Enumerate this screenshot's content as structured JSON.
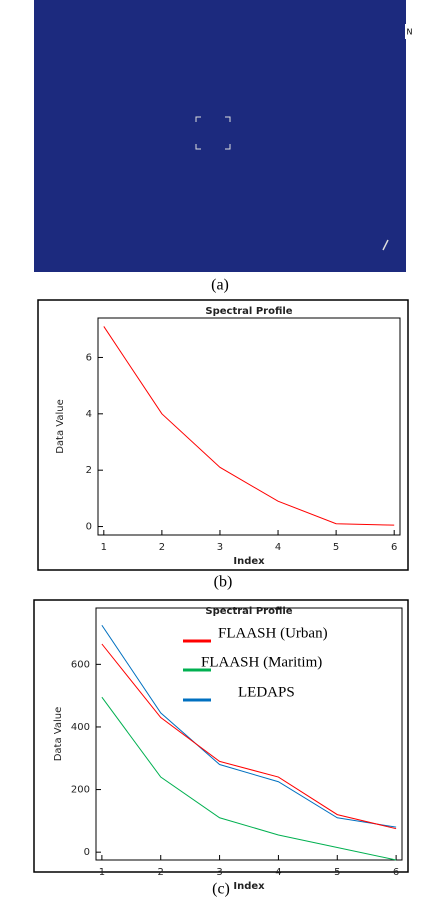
{
  "image": {
    "caption": "(a)",
    "north_label": "N"
  },
  "chart_data": [
    {
      "type": "line",
      "caption": "(b)",
      "title": "Spectral Profile",
      "x_label": "Index",
      "y_label": "Data Value",
      "x": [
        1,
        2,
        3,
        4,
        5,
        6
      ],
      "values": [
        7.1,
        4.0,
        2.1,
        0.9,
        0.1,
        0.05
      ],
      "color": "#ff0000",
      "xlim": [
        0.9,
        6.1
      ],
      "xticks": [
        1,
        2,
        3,
        4,
        5,
        6
      ],
      "ylim": [
        -0.3,
        7.4
      ],
      "yticks": [
        0,
        2,
        4,
        6
      ]
    },
    {
      "type": "line",
      "caption": "(c)",
      "title": "Spectral Profile",
      "x_label": "Index",
      "y_label": "Data Value",
      "x": [
        1,
        2,
        3,
        4,
        5,
        6
      ],
      "series": [
        {
          "name": "FLAASH (Urban)",
          "color": "#ff0000",
          "values": [
            665,
            430,
            290,
            240,
            120,
            75
          ]
        },
        {
          "name": "FLAASH (Maritim)",
          "color": "#00b050",
          "values": [
            495,
            240,
            110,
            55,
            15,
            -25
          ]
        },
        {
          "name": "LEDAPS",
          "color": "#0070c0",
          "values": [
            725,
            445,
            280,
            225,
            110,
            80
          ]
        }
      ],
      "xlim": [
        0.9,
        6.1
      ],
      "xticks": [
        1,
        2,
        3,
        4,
        5,
        6
      ],
      "ylim": [
        -25,
        780
      ],
      "yticks": [
        0,
        200,
        400,
        600
      ],
      "legend": "upper right"
    }
  ]
}
